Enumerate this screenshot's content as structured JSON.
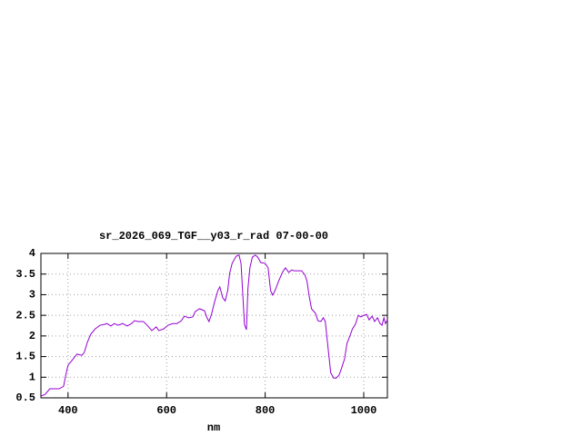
{
  "chart_data": {
    "type": "line",
    "title": "sr_2026_069_TGF__y03_r_rad 07-00-00",
    "x_label": "nm",
    "xlim": [
      345,
      1048
    ],
    "ylim": [
      0.5,
      4
    ],
    "xticks": [
      400,
      600,
      800,
      1000
    ],
    "yticks": [
      0.5,
      1,
      1.5,
      2,
      2.5,
      3,
      3.5,
      4
    ],
    "grid": true,
    "series": [
      {
        "color": "#9400d3",
        "x": [
          345,
          354,
          363,
          372,
          382,
          391,
          395,
          400,
          409,
          418,
          428,
          433,
          439,
          446,
          455,
          465,
          474,
          479,
          487,
          494,
          501,
          511,
          520,
          529,
          535,
          542,
          553,
          562,
          570,
          579,
          584,
          594,
          603,
          612,
          621,
          630,
          636,
          645,
          653,
          658,
          667,
          677,
          682,
          686,
          691,
          697,
          704,
          708,
          714,
          719,
          724,
          728,
          733,
          741,
          747,
          751,
          754,
          758,
          762,
          765,
          769,
          774,
          780,
          785,
          791,
          800,
          806,
          811,
          815,
          820,
          827,
          835,
          841,
          848,
          854,
          859,
          866,
          874,
          881,
          885,
          889,
          894,
          902,
          907,
          913,
          918,
          922,
          927,
          933,
          939,
          944,
          950,
          955,
          961,
          966,
          972,
          977,
          983,
          989,
          994,
          1000,
          1006,
          1011,
          1017,
          1022,
          1028,
          1033,
          1037,
          1041,
          1044,
          1048
        ],
        "values": [
          0.54,
          0.59,
          0.72,
          0.72,
          0.72,
          0.78,
          1.03,
          1.29,
          1.42,
          1.56,
          1.53,
          1.6,
          1.84,
          2.04,
          2.17,
          2.26,
          2.28,
          2.3,
          2.24,
          2.3,
          2.26,
          2.3,
          2.24,
          2.3,
          2.37,
          2.35,
          2.35,
          2.24,
          2.13,
          2.22,
          2.13,
          2.17,
          2.26,
          2.3,
          2.3,
          2.37,
          2.48,
          2.44,
          2.46,
          2.59,
          2.66,
          2.61,
          2.44,
          2.35,
          2.52,
          2.81,
          3.1,
          3.19,
          2.92,
          2.85,
          3.1,
          3.52,
          3.76,
          3.93,
          3.96,
          3.76,
          3.14,
          2.28,
          2.15,
          3.14,
          3.65,
          3.91,
          3.96,
          3.91,
          3.78,
          3.76,
          3.65,
          3.1,
          2.99,
          3.1,
          3.32,
          3.54,
          3.65,
          3.54,
          3.6,
          3.58,
          3.58,
          3.58,
          3.47,
          3.32,
          2.99,
          2.66,
          2.55,
          2.37,
          2.35,
          2.44,
          2.35,
          1.78,
          1.11,
          0.98,
          0.98,
          1.05,
          1.22,
          1.44,
          1.82,
          2.0,
          2.17,
          2.28,
          2.5,
          2.46,
          2.5,
          2.52,
          2.39,
          2.48,
          2.35,
          2.44,
          2.3,
          2.26,
          2.44,
          2.3,
          2.39
        ]
      }
    ]
  }
}
